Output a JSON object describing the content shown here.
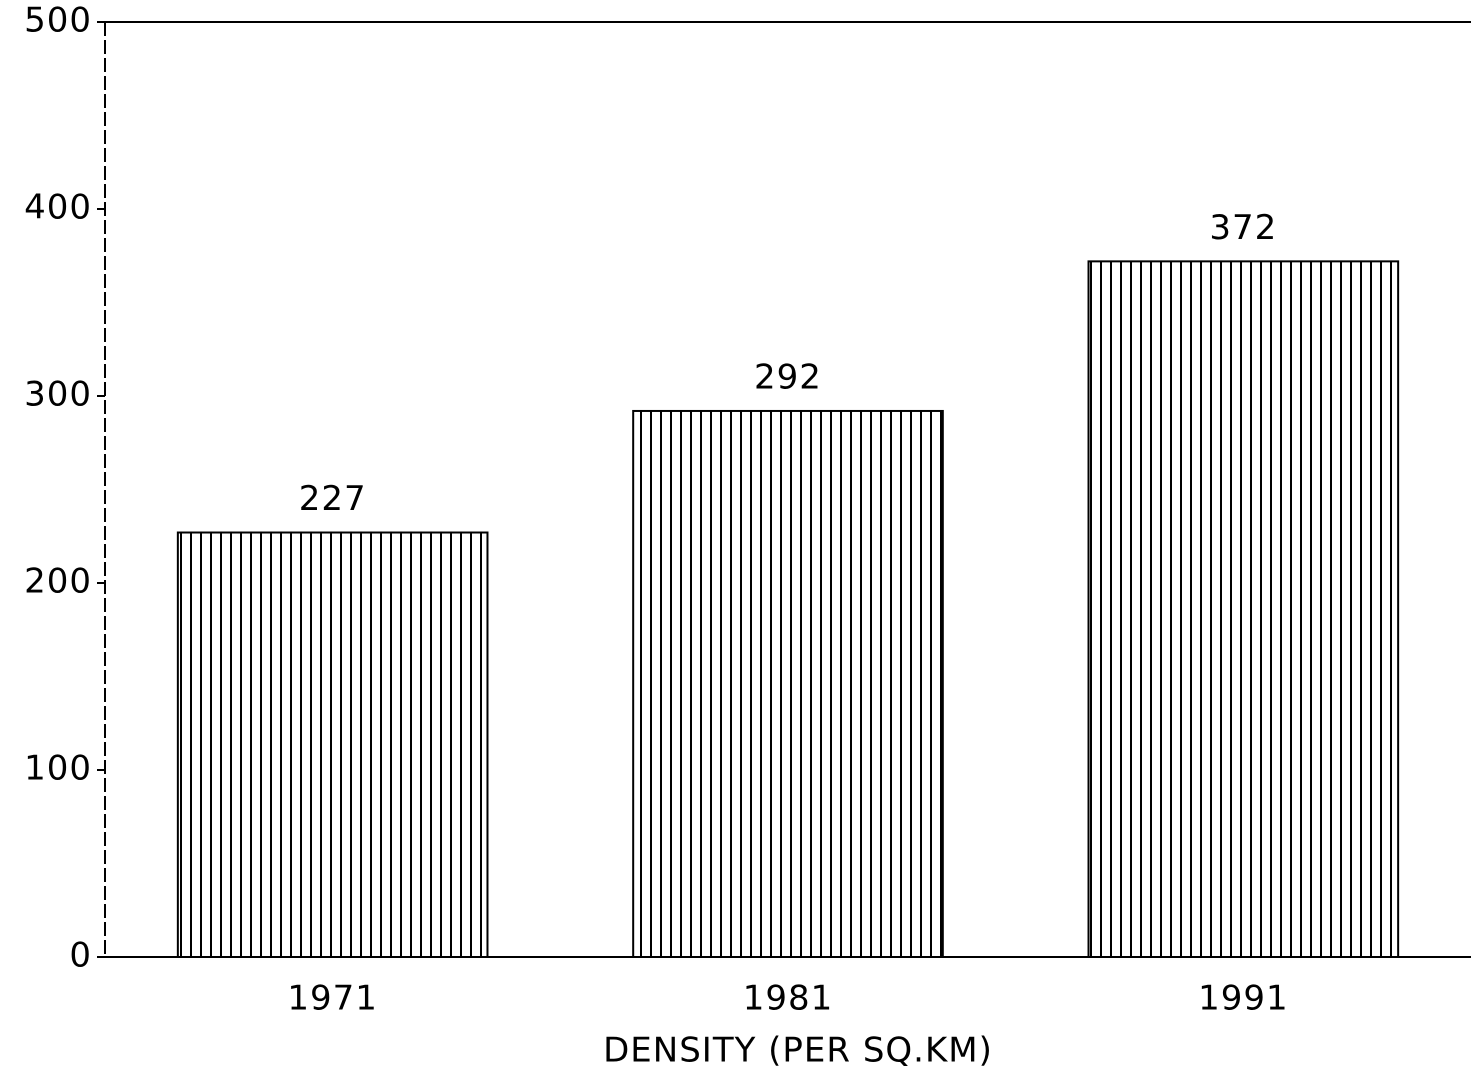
{
  "chart_data": {
    "type": "bar",
    "x_label": "DENSITY (PER SQ.KM)",
    "categories": [
      "1971",
      "1981",
      "1991"
    ],
    "values": [
      227,
      292,
      372
    ],
    "color": "#000000",
    "ylim": [
      0,
      500
    ],
    "yticks": [
      0,
      100,
      200,
      300,
      400,
      500
    ],
    "grid": false
  }
}
